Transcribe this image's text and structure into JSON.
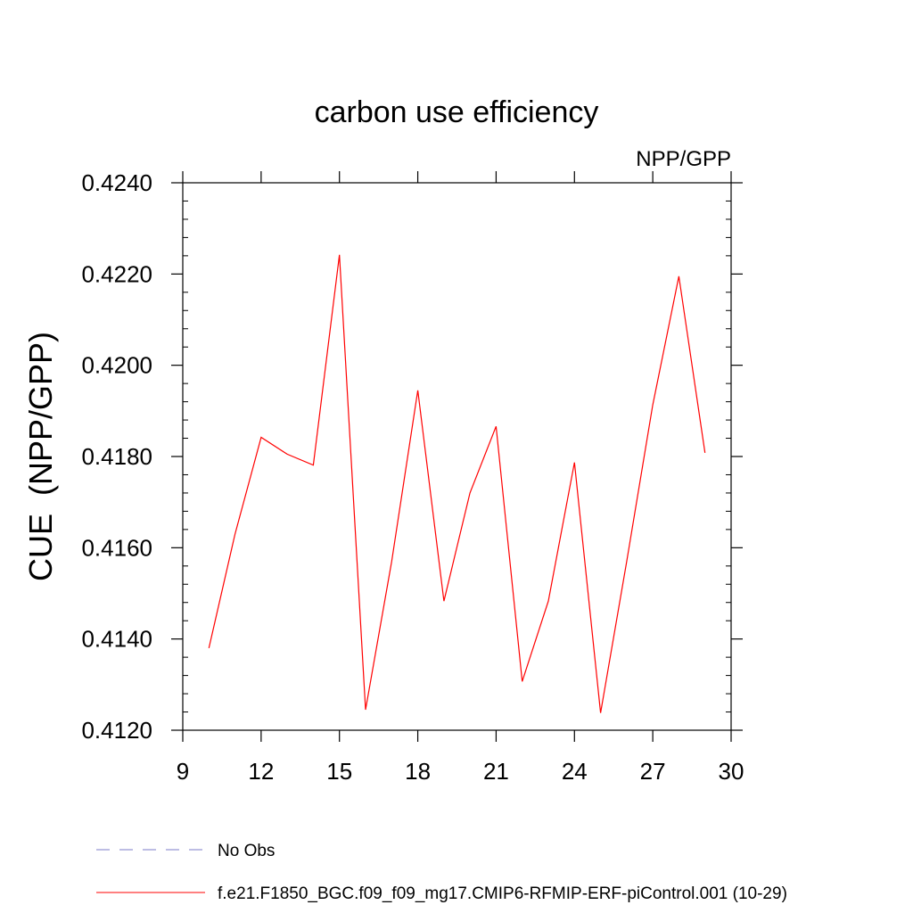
{
  "chart_data": {
    "type": "line",
    "title": "carbon use efficiency",
    "subtitle": "NPP/GPP",
    "xlabel": "",
    "ylabel": "CUE  (NPP/GPP)",
    "xlim": [
      9,
      30
    ],
    "ylim": [
      0.412,
      0.424
    ],
    "x_ticks": [
      9,
      12,
      15,
      18,
      21,
      24,
      27,
      30
    ],
    "x_tick_labels": [
      "9",
      "12",
      "15",
      "18",
      "21",
      "24",
      "27",
      "30"
    ],
    "y_ticks": [
      0.412,
      0.414,
      0.416,
      0.418,
      0.42,
      0.422,
      0.424
    ],
    "y_tick_labels": [
      "0.4120",
      "0.4140",
      "0.4160",
      "0.4180",
      "0.4200",
      "0.4220",
      "0.4240"
    ],
    "grid": false,
    "legend_position": "bottom",
    "series": [
      {
        "name": "f.e21.F1850_BGC.f09_f09_mg17.CMIP6-RFMIP-ERF-piControl.001 (10-29)",
        "color": "#ff0000",
        "style": "solid",
        "x": [
          10,
          11,
          12,
          13,
          14,
          15,
          16,
          17,
          18,
          19,
          20,
          21,
          22,
          23,
          24,
          25,
          26,
          27,
          28,
          29
        ],
        "y": [
          0.4138,
          0.4163,
          0.41842,
          0.41805,
          0.41781,
          0.42242,
          0.41245,
          0.4157,
          0.41945,
          0.41483,
          0.4172,
          0.41866,
          0.41307,
          0.41483,
          0.41787,
          0.41238,
          0.4157,
          0.41913,
          0.42195,
          0.41808
        ]
      }
    ],
    "legend": [
      {
        "label": "No Obs",
        "color": "#7b7bc8",
        "style": "dashed"
      },
      {
        "label": "f.e21.F1850_BGC.f09_f09_mg17.CMIP6-RFMIP-ERF-piControl.001 (10-29)",
        "color": "#ff0000",
        "style": "solid"
      }
    ]
  }
}
